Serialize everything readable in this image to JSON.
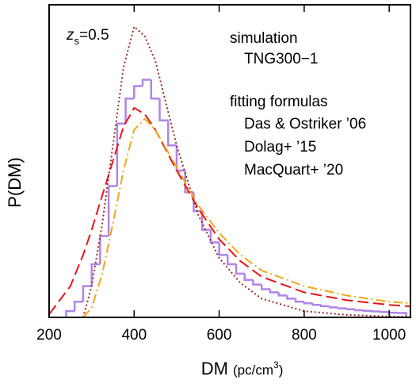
{
  "chart_data": {
    "type": "line",
    "ylabel": "P(DM)",
    "xlabel": "DM",
    "xlabel_unit": {
      "before": "(pc/cm",
      "superscript": "3",
      "after": ")"
    },
    "annotation": {
      "symbol": "z",
      "subscript": "s",
      "text": "=0.5"
    },
    "legend_headers": [
      "simulation",
      "fitting formulas"
    ],
    "xlim": [
      200,
      1050
    ],
    "ylim": [
      0,
      1
    ],
    "xticks": [
      200,
      400,
      600,
      800,
      1000
    ],
    "histogram": {
      "name": "TNG300−1",
      "color": "#b084e8",
      "bins": [
        240,
        260,
        280,
        300,
        320,
        340,
        360,
        380,
        400,
        420,
        440,
        460,
        480,
        500,
        520,
        540,
        560,
        580,
        600,
        620,
        640,
        660,
        680,
        700,
        720,
        740,
        760,
        780,
        800,
        820,
        840,
        860,
        880,
        900,
        920,
        940,
        960,
        980,
        1000,
        1020,
        1040
      ],
      "counts": [
        0.02,
        0.05,
        0.1,
        0.17,
        0.26,
        0.42,
        0.62,
        0.7,
        0.74,
        0.76,
        0.7,
        0.63,
        0.55,
        0.47,
        0.4,
        0.34,
        0.28,
        0.24,
        0.2,
        0.17,
        0.14,
        0.12,
        0.105,
        0.09,
        0.08,
        0.07,
        0.06,
        0.05,
        0.045,
        0.04,
        0.036,
        0.032,
        0.029,
        0.026,
        0.023,
        0.021,
        0.019,
        0.017,
        0.015,
        0.014
      ]
    },
    "x": [
      200,
      250,
      280,
      300,
      325,
      350,
      375,
      400,
      425,
      450,
      500,
      550,
      600,
      650,
      700,
      800,
      900,
      1000,
      1050
    ],
    "series": [
      {
        "name": "Das & Ostriker ’06",
        "color": "#e8141a",
        "dash": "14 6",
        "values": [
          0.01,
          0.1,
          0.2,
          0.28,
          0.39,
          0.5,
          0.61,
          0.67,
          0.65,
          0.6,
          0.47,
          0.35,
          0.25,
          0.18,
          0.13,
          0.08,
          0.055,
          0.04,
          0.035
        ]
      },
      {
        "name": "Dolag+ ’15",
        "color": "#9b2a2a",
        "dash": "2 3",
        "values": [
          null,
          null,
          0.0,
          0.1,
          0.3,
          0.55,
          0.8,
          0.93,
          0.9,
          0.82,
          0.55,
          0.33,
          0.19,
          0.11,
          0.06,
          0.02,
          0.008,
          0.003,
          0.002
        ]
      },
      {
        "name": "MacQuart+ ’20",
        "color": "#f0a818",
        "dash": "12 4 2 4",
        "values": [
          null,
          null,
          0.0,
          0.03,
          0.14,
          0.3,
          0.47,
          0.6,
          0.635,
          0.6,
          0.48,
          0.36,
          0.27,
          0.2,
          0.15,
          0.1,
          0.07,
          0.05,
          0.045
        ]
      }
    ]
  }
}
